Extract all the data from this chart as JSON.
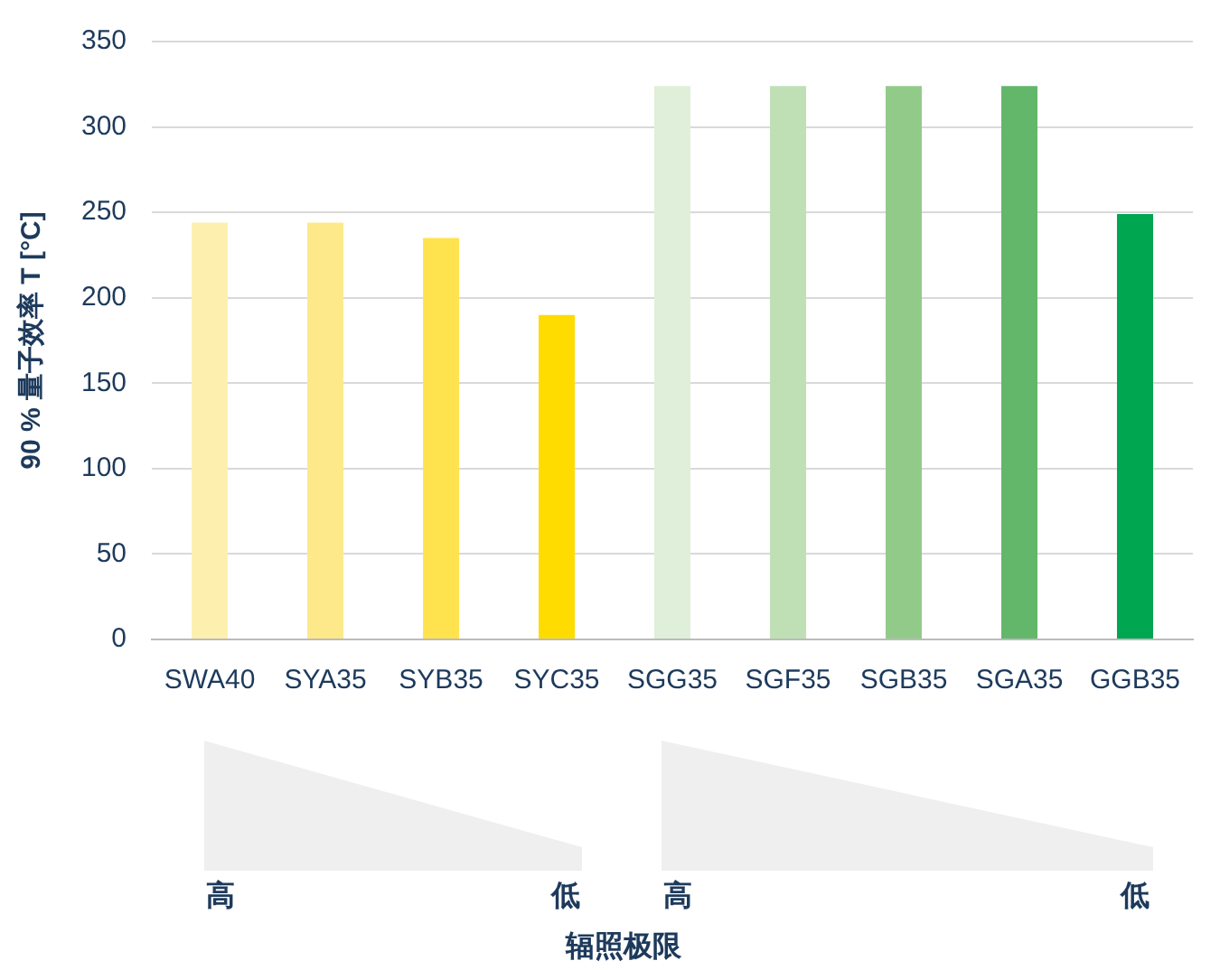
{
  "chart_data": {
    "type": "bar",
    "ylabel": "90 % 量子效率 T [°C]",
    "categories": [
      "SWA40",
      "SYA35",
      "SYB35",
      "SYC35",
      "SGG35",
      "SGF35",
      "SGB35",
      "SGA35",
      "GGB35"
    ],
    "values": [
      244,
      244,
      235,
      190,
      324,
      324,
      324,
      324,
      249
    ],
    "colors": [
      "#fdf0ae",
      "#fde98a",
      "#fee34e",
      "#fedc00",
      "#e0efd9",
      "#bfe0b4",
      "#92cb89",
      "#63b76a",
      "#00a650"
    ],
    "ylim": [
      0,
      350
    ],
    "yticks": [
      0,
      50,
      100,
      150,
      200,
      250,
      300,
      350
    ],
    "grid": "y",
    "legend": false,
    "annotations": [
      "高",
      "低",
      "高",
      "低",
      "辐照极限"
    ]
  }
}
